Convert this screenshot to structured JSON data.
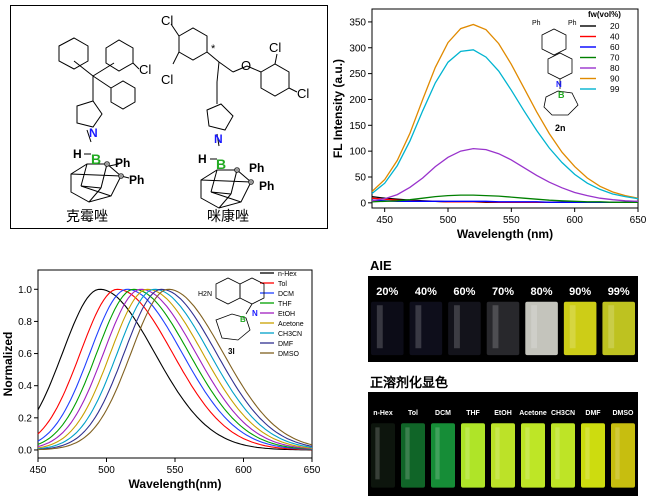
{
  "panel_a": {
    "labels": {
      "cl": "Cl",
      "n": "N",
      "h": "H",
      "b": "B",
      "ph": "Ph",
      "o": "O",
      "star": "*"
    },
    "name_left": "克霉唑",
    "name_right": "咪康唑"
  },
  "panel_d": {
    "title": "AIE",
    "vials": [
      {
        "label": "20%",
        "color": "#0d0d18"
      },
      {
        "label": "40%",
        "color": "#0f0f1c"
      },
      {
        "label": "60%",
        "color": "#14141c"
      },
      {
        "label": "70%",
        "color": "#2a2a2e"
      },
      {
        "label": "80%",
        "color": "#cfcfc6"
      },
      {
        "label": "90%",
        "color": "#d8d818"
      },
      {
        "label": "99%",
        "color": "#c8cc22"
      }
    ]
  },
  "panel_e": {
    "title": "正溶剂化显色",
    "vials": [
      {
        "label": "n-Hex",
        "color": "#0e160e"
      },
      {
        "label": "Tol",
        "color": "#116a2a"
      },
      {
        "label": "DCM",
        "color": "#17953a"
      },
      {
        "label": "THF",
        "color": "#b8f02a"
      },
      {
        "label": "EtOH",
        "color": "#c6ee2a"
      },
      {
        "label": "Acetone",
        "color": "#c8f228"
      },
      {
        "label": "CH3CN",
        "color": "#c8f028"
      },
      {
        "label": "DMF",
        "color": "#d8e810"
      },
      {
        "label": "DMSO",
        "color": "#d2c810"
      }
    ]
  },
  "chart_data": [
    {
      "type": "line",
      "xlabel": "Wavelength (nm)",
      "ylabel": "FL Intensity (a.u.)",
      "xlim": [
        440,
        650
      ],
      "ylim": [
        -10,
        375
      ],
      "xticks": [
        450,
        500,
        550,
        600,
        650
      ],
      "yticks": [
        0,
        50,
        100,
        150,
        200,
        250,
        300,
        350
      ],
      "legend_title": "fw(vol%)",
      "legend_position": "top-right",
      "inset_label": "2n",
      "x": [
        440,
        450,
        460,
        470,
        480,
        490,
        500,
        510,
        520,
        530,
        540,
        550,
        560,
        570,
        580,
        590,
        600,
        610,
        620,
        630,
        640,
        650
      ],
      "series": [
        {
          "name": "20",
          "color": "#000000",
          "values": [
            12,
            9,
            7,
            5,
            4,
            3,
            2,
            2,
            2,
            1,
            1,
            1,
            1,
            1,
            1,
            1,
            1,
            1,
            1,
            1,
            1,
            1
          ]
        },
        {
          "name": "40",
          "color": "#ff0000",
          "values": [
            9,
            7,
            5,
            4,
            3,
            3,
            2,
            2,
            2,
            2,
            1,
            1,
            1,
            1,
            1,
            1,
            1,
            1,
            1,
            1,
            1,
            1
          ]
        },
        {
          "name": "60",
          "color": "#0000ff",
          "values": [
            5,
            4,
            3,
            3,
            3,
            3,
            3,
            3,
            3,
            3,
            2,
            2,
            2,
            2,
            1,
            1,
            1,
            1,
            1,
            1,
            1,
            1
          ]
        },
        {
          "name": "70",
          "color": "#008000",
          "values": [
            2,
            3,
            4,
            6,
            9,
            12,
            14,
            15,
            15,
            14,
            13,
            11,
            9,
            7,
            5,
            4,
            3,
            2,
            2,
            1,
            1,
            1
          ]
        },
        {
          "name": "80",
          "color": "#9933cc",
          "values": [
            4,
            8,
            16,
            30,
            48,
            70,
            88,
            100,
            105,
            103,
            95,
            83,
            68,
            53,
            40,
            29,
            20,
            14,
            9,
            6,
            4,
            3
          ]
        },
        {
          "name": "90",
          "color": "#e08a00",
          "values": [
            22,
            45,
            82,
            135,
            200,
            262,
            310,
            337,
            345,
            335,
            308,
            268,
            222,
            176,
            134,
            98,
            70,
            48,
            32,
            21,
            14,
            9
          ]
        },
        {
          "name": "99",
          "color": "#00b4d0",
          "values": [
            18,
            38,
            72,
            120,
            178,
            232,
            272,
            293,
            296,
            282,
            255,
            218,
            178,
            140,
            106,
            78,
            55,
            38,
            26,
            17,
            12,
            8
          ]
        }
      ]
    },
    {
      "type": "line",
      "xlabel": "Wavelength(nm)",
      "ylabel": "Normalized",
      "xlim": [
        450,
        650
      ],
      "ylim": [
        -0.05,
        1.12
      ],
      "xticks": [
        450,
        500,
        550,
        600,
        650
      ],
      "yticks": [
        0.0,
        0.2,
        0.4,
        0.6,
        0.8,
        1.0
      ],
      "legend_position": "top-right",
      "inset_label": "3l",
      "inset_text": "H2N",
      "series": [
        {
          "name": "n-Hex",
          "color": "#000000",
          "peak": 495
        },
        {
          "name": "Tol",
          "color": "#ff0000",
          "peak": 508
        },
        {
          "name": "DCM",
          "color": "#2040ff",
          "peak": 515
        },
        {
          "name": "THF",
          "color": "#00a000",
          "peak": 520
        },
        {
          "name": "EtOH",
          "color": "#a020c0",
          "peak": 525
        },
        {
          "name": "Acetone",
          "color": "#c8a000",
          "peak": 530
        },
        {
          "name": "CH3CN",
          "color": "#00a0c8",
          "peak": 535
        },
        {
          "name": "DMF",
          "color": "#303090",
          "peak": 540
        },
        {
          "name": "DMSO",
          "color": "#806020",
          "peak": 545
        }
      ]
    }
  ]
}
